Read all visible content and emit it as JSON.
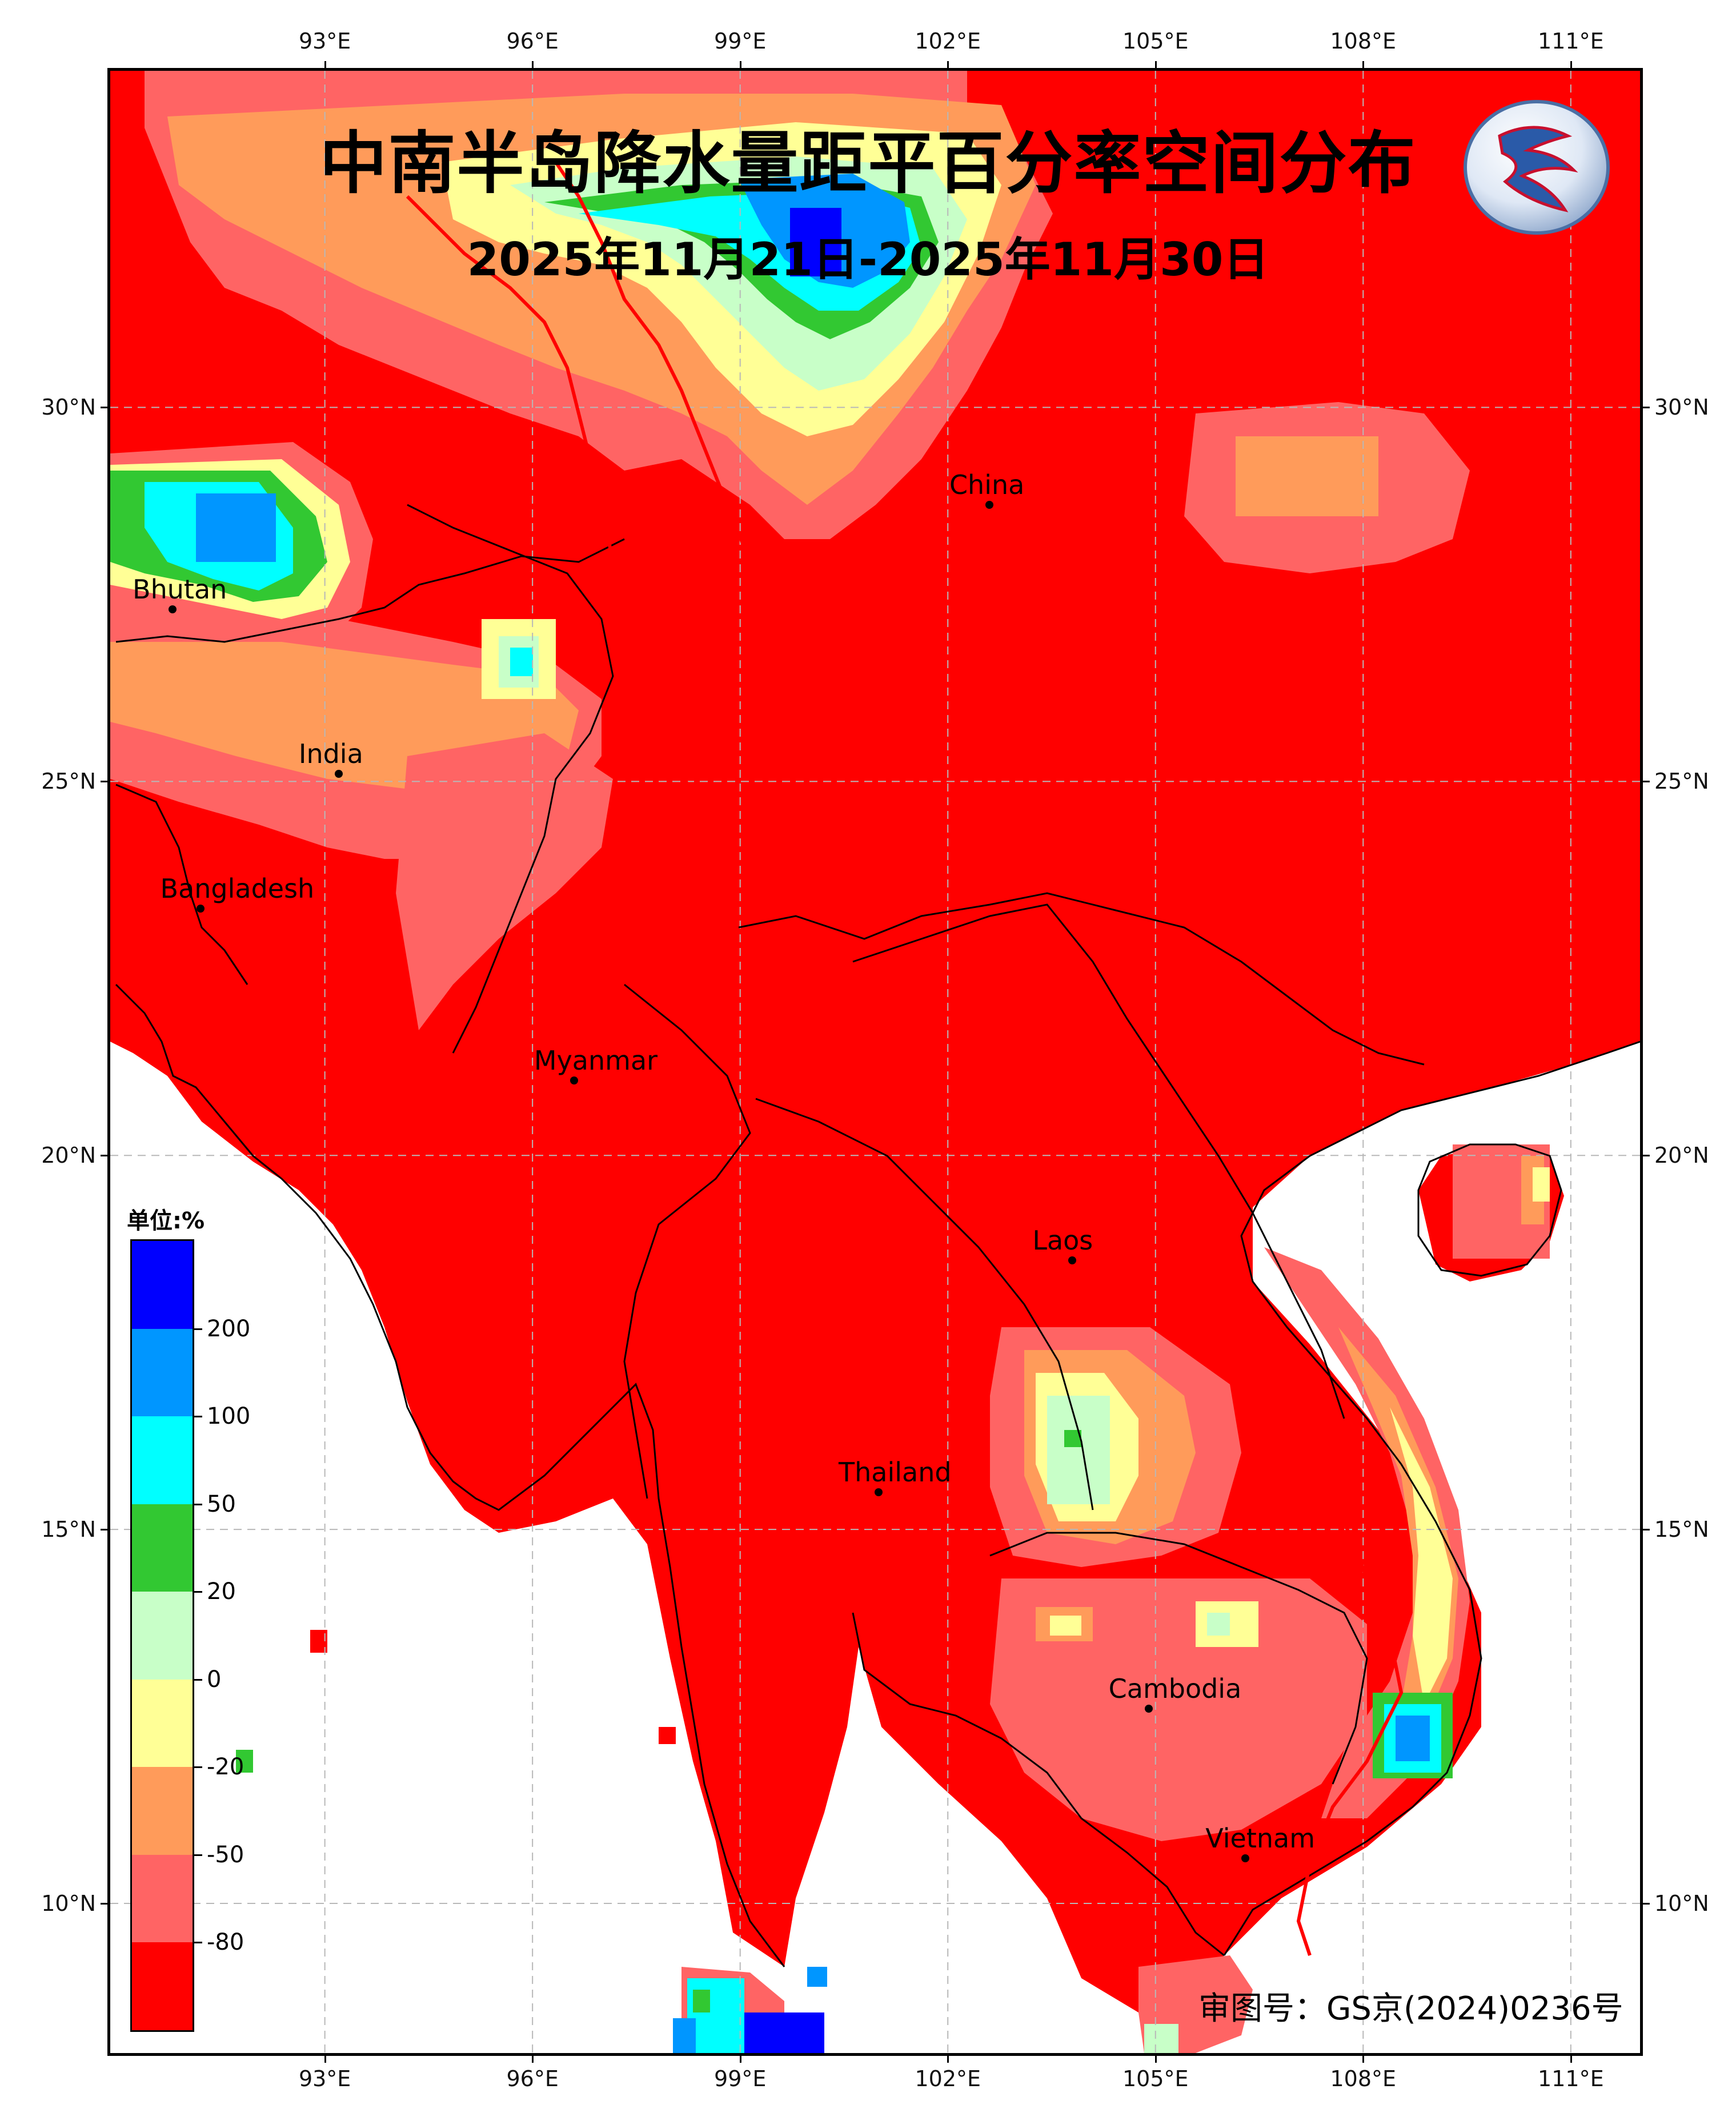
{
  "title": "中南半岛降水量距平百分率空间分布",
  "subtitle": "2025年11月21日-2025年11月30日",
  "approval_note": "审图号：GS京(2024)0236号",
  "axes": {
    "lon_top": [
      "93°E",
      "96°E",
      "99°E",
      "102°E",
      "105°E",
      "108°E",
      "111°E"
    ],
    "lon_bottom": [
      "93°E",
      "96°E",
      "99°E",
      "102°E",
      "105°E",
      "108°E",
      "111°E"
    ],
    "lat_left": [
      "30°N",
      "25°N",
      "20°N",
      "15°N",
      "10°N"
    ],
    "lat_right": [
      "30°N",
      "25°N",
      "20°N",
      "15°N",
      "10°N"
    ]
  },
  "places": [
    {
      "name": "China",
      "lon": 102.6,
      "lat": 28.7
    },
    {
      "name": "Bhutan",
      "lon": 90.8,
      "lat": 27.3
    },
    {
      "name": "India",
      "lon": 93.2,
      "lat": 25.1
    },
    {
      "name": "Bangladesh",
      "lon": 91.2,
      "lat": 23.3
    },
    {
      "name": "Myanmar",
      "lon": 96.6,
      "lat": 21.0
    },
    {
      "name": "Laos",
      "lon": 103.8,
      "lat": 18.6
    },
    {
      "name": "Thailand",
      "lon": 101.0,
      "lat": 15.5
    },
    {
      "name": "Cambodia",
      "lon": 104.9,
      "lat": 12.6
    },
    {
      "name": "Vietnam",
      "lon": 106.3,
      "lat": 10.6
    }
  ],
  "legend": {
    "unit": "单位:%",
    "labels": [
      "200",
      "100",
      "50",
      "20",
      "0",
      "-20",
      "-50",
      "-80"
    ],
    "colors": [
      "#ff0000",
      "#ff6464",
      "#ff9b5a",
      "#ffff96",
      "#c8ffc8",
      "#32c832",
      "#00ffff",
      "#0096ff",
      "#0000ff"
    ]
  },
  "colors": {
    "below_minus_80": "#ff0000",
    "minus_80_to_50": "#ff6464",
    "minus_50_to_20": "#ff9b5a",
    "minus_20_to_0": "#ffff96",
    "zero_to_20": "#c8ffc8",
    "20_to_50": "#32c832",
    "50_to_100": "#00ffff",
    "100_to_200": "#0096ff",
    "above_200": "#0000ff",
    "river": "#ff0000"
  }
}
